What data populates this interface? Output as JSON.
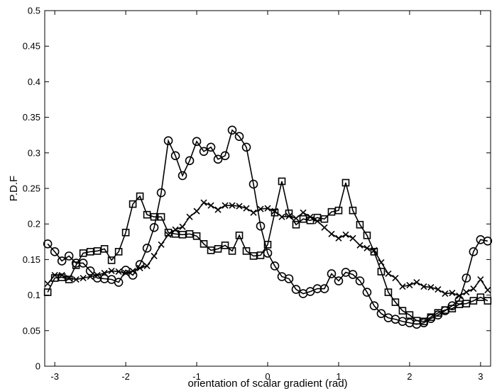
{
  "chart_data": {
    "type": "line",
    "title": "",
    "xlabel": "orientation of scalar gradient (rad)",
    "ylabel": "P.D.F",
    "xlim": [
      -3.1416,
      3.1416
    ],
    "ylim": [
      0,
      0.5
    ],
    "xticks": [
      -3,
      -2,
      -1,
      0,
      1,
      2,
      3
    ],
    "yticks": [
      0,
      0.05,
      0.1,
      0.15,
      0.2,
      0.25,
      0.3,
      0.35,
      0.4,
      0.45,
      0.5
    ],
    "grid": false,
    "legend": "none",
    "colors": {
      "line": "#000000",
      "axes": "#000000",
      "background": "#ffffff"
    },
    "series": [
      {
        "marker": "circle",
        "x": [
          -3.1,
          -3.0,
          -2.9,
          -2.8,
          -2.7,
          -2.6,
          -2.5,
          -2.4,
          -2.3,
          -2.2,
          -2.1,
          -2.0,
          -1.9,
          -1.8,
          -1.7,
          -1.6,
          -1.5,
          -1.4,
          -1.3,
          -1.2,
          -1.1,
          -1.0,
          -0.9,
          -0.8,
          -0.7,
          -0.6,
          -0.5,
          -0.4,
          -0.3,
          -0.2,
          -0.1,
          0.0,
          0.1,
          0.2,
          0.3,
          0.4,
          0.5,
          0.6,
          0.7,
          0.8,
          0.9,
          1.0,
          1.1,
          1.2,
          1.3,
          1.4,
          1.5,
          1.6,
          1.7,
          1.8,
          1.9,
          2.0,
          2.1,
          2.2,
          2.3,
          2.4,
          2.5,
          2.6,
          2.7,
          2.8,
          2.9,
          3.0,
          3.1
        ],
        "y": [
          0.172,
          0.161,
          0.148,
          0.155,
          0.145,
          0.145,
          0.134,
          0.124,
          0.123,
          0.122,
          0.118,
          0.135,
          0.128,
          0.143,
          0.166,
          0.195,
          0.244,
          0.317,
          0.296,
          0.268,
          0.289,
          0.316,
          0.302,
          0.308,
          0.291,
          0.296,
          0.332,
          0.323,
          0.308,
          0.256,
          0.197,
          0.159,
          0.141,
          0.126,
          0.123,
          0.108,
          0.102,
          0.105,
          0.109,
          0.109,
          0.13,
          0.12,
          0.132,
          0.129,
          0.12,
          0.104,
          0.085,
          0.074,
          0.068,
          0.066,
          0.063,
          0.061,
          0.059,
          0.061,
          0.067,
          0.072,
          0.078,
          0.085,
          0.093,
          0.124,
          0.161,
          0.178,
          0.176
        ]
      },
      {
        "marker": "square",
        "x": [
          -3.1,
          -3.0,
          -2.9,
          -2.8,
          -2.7,
          -2.6,
          -2.5,
          -2.4,
          -2.3,
          -2.2,
          -2.1,
          -2.0,
          -1.9,
          -1.8,
          -1.7,
          -1.6,
          -1.5,
          -1.4,
          -1.3,
          -1.2,
          -1.1,
          -1.0,
          -0.9,
          -0.8,
          -0.7,
          -0.6,
          -0.5,
          -0.4,
          -0.3,
          -0.2,
          -0.1,
          0.0,
          0.1,
          0.2,
          0.3,
          0.4,
          0.5,
          0.6,
          0.7,
          0.8,
          0.9,
          1.0,
          1.1,
          1.2,
          1.3,
          1.4,
          1.5,
          1.6,
          1.7,
          1.8,
          1.9,
          2.0,
          2.1,
          2.2,
          2.3,
          2.4,
          2.5,
          2.6,
          2.7,
          2.8,
          2.9,
          3.0,
          3.1
        ],
        "y": [
          0.104,
          0.124,
          0.125,
          0.122,
          0.142,
          0.159,
          0.161,
          0.162,
          0.165,
          0.149,
          0.161,
          0.188,
          0.228,
          0.239,
          0.213,
          0.21,
          0.21,
          0.188,
          0.186,
          0.185,
          0.186,
          0.183,
          0.172,
          0.163,
          0.165,
          0.17,
          0.162,
          0.184,
          0.162,
          0.155,
          0.156,
          0.171,
          0.216,
          0.26,
          0.215,
          0.199,
          0.207,
          0.205,
          0.209,
          0.207,
          0.217,
          0.219,
          0.258,
          0.219,
          0.199,
          0.184,
          0.161,
          0.133,
          0.104,
          0.09,
          0.078,
          0.072,
          0.064,
          0.063,
          0.069,
          0.075,
          0.079,
          0.081,
          0.087,
          0.088,
          0.092,
          0.097,
          0.092
        ]
      },
      {
        "marker": "x",
        "x": [
          -3.1,
          -3.0,
          -2.9,
          -2.8,
          -2.7,
          -2.6,
          -2.5,
          -2.4,
          -2.3,
          -2.2,
          -2.1,
          -2.0,
          -1.9,
          -1.8,
          -1.7,
          -1.6,
          -1.5,
          -1.4,
          -1.3,
          -1.2,
          -1.1,
          -1.0,
          -0.9,
          -0.8,
          -0.7,
          -0.6,
          -0.5,
          -0.4,
          -0.3,
          -0.2,
          -0.1,
          0.0,
          0.1,
          0.2,
          0.3,
          0.4,
          0.5,
          0.6,
          0.7,
          0.8,
          0.9,
          1.0,
          1.1,
          1.2,
          1.3,
          1.4,
          1.5,
          1.6,
          1.7,
          1.8,
          1.9,
          2.0,
          2.1,
          2.2,
          2.3,
          2.4,
          2.5,
          2.6,
          2.7,
          2.8,
          2.9,
          3.0,
          3.1
        ],
        "y": [
          0.116,
          0.128,
          0.128,
          0.124,
          0.122,
          0.124,
          0.126,
          0.128,
          0.131,
          0.134,
          0.133,
          0.131,
          0.134,
          0.138,
          0.141,
          0.155,
          0.171,
          0.185,
          0.192,
          0.196,
          0.21,
          0.218,
          0.23,
          0.226,
          0.22,
          0.226,
          0.226,
          0.225,
          0.222,
          0.216,
          0.221,
          0.222,
          0.218,
          0.21,
          0.211,
          0.208,
          0.216,
          0.21,
          0.204,
          0.195,
          0.186,
          0.18,
          0.185,
          0.18,
          0.17,
          0.166,
          0.163,
          0.146,
          0.13,
          0.124,
          0.112,
          0.114,
          0.118,
          0.112,
          0.111,
          0.108,
          0.102,
          0.103,
          0.099,
          0.104,
          0.109,
          0.122,
          0.107
        ]
      }
    ]
  }
}
